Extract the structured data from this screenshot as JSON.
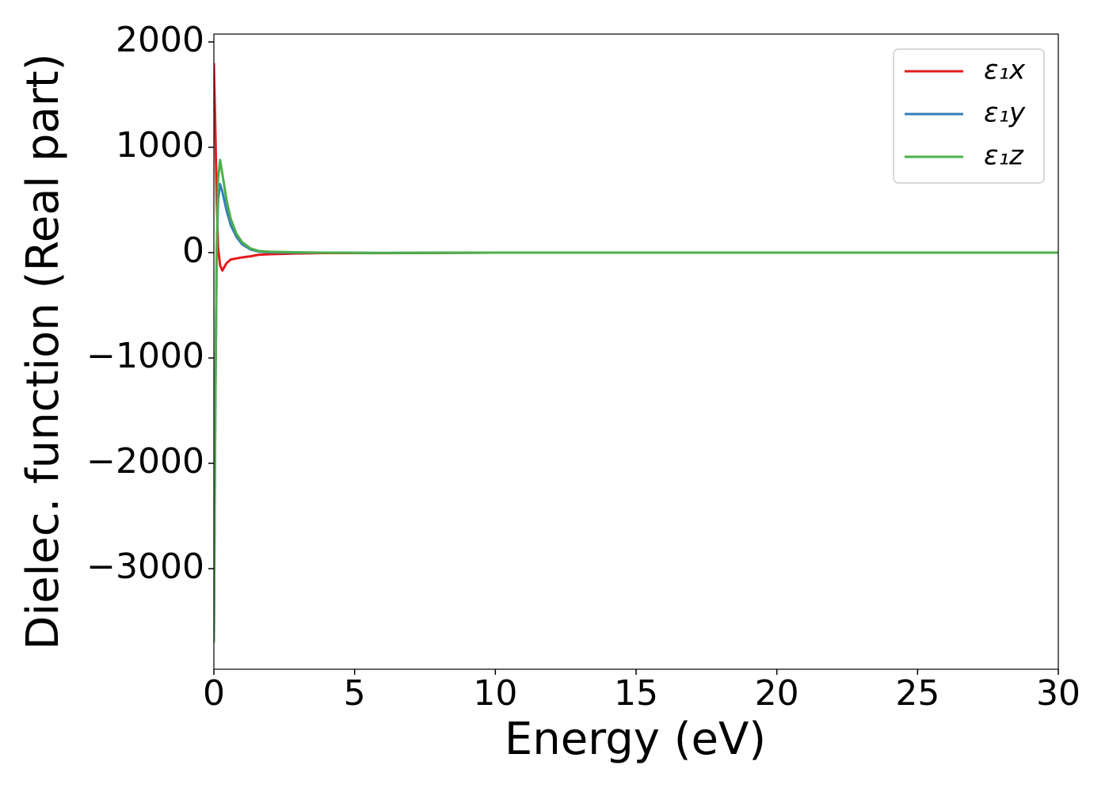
{
  "chart_data": {
    "type": "line",
    "x_label": "Energy (eV)",
    "y_label": "Dielec. function (Real part)",
    "x": [
      0,
      0.05,
      0.1,
      0.15,
      0.22,
      0.3,
      0.45,
      0.6,
      0.8,
      1.0,
      1.3,
      1.6,
      2,
      3,
      4,
      6,
      10,
      15,
      20,
      25,
      30
    ],
    "series": [
      {
        "name": "ε₁x",
        "color": "#e41a1c",
        "values": [
          1800,
          1200,
          500,
          50,
          -120,
          -170,
          -100,
          -65,
          -55,
          -45,
          -35,
          -20,
          -15,
          -8,
          -3,
          -5,
          0,
          0,
          0,
          0,
          0
        ]
      },
      {
        "name": "ε₁y",
        "color": "#377eb8",
        "values": [
          -3700,
          -1500,
          0,
          500,
          650,
          580,
          400,
          260,
          150,
          80,
          30,
          10,
          3,
          0,
          0,
          -3,
          0,
          0,
          0,
          0,
          0
        ]
      },
      {
        "name": "ε₁z",
        "color": "#4daf4a",
        "values": [
          -3700,
          -1500,
          0,
          700,
          880,
          750,
          500,
          320,
          180,
          100,
          40,
          15,
          8,
          3,
          0,
          -3,
          0,
          0,
          0,
          0,
          0
        ]
      }
    ],
    "xlim": [
      0,
      30
    ],
    "xticks": [
      0,
      5,
      10,
      15,
      20,
      25,
      30
    ],
    "ylim": [
      -3955,
      2075
    ],
    "yticks": [
      {
        "value": -3000,
        "label": "−3000"
      },
      {
        "value": -2000,
        "label": "−2000"
      },
      {
        "value": -1000,
        "label": "−1000"
      },
      0,
      1000,
      2000
    ],
    "legend": "upper right",
    "grid": false
  }
}
